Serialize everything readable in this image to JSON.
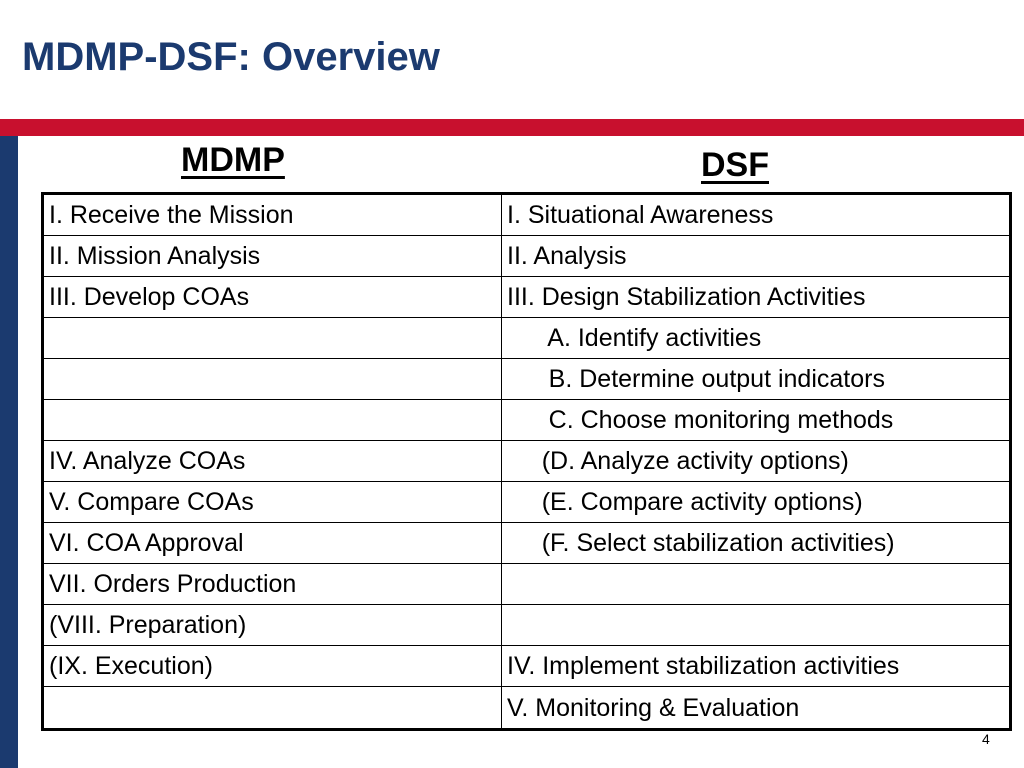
{
  "slide": {
    "title": "MDMP-DSF: Overview",
    "slide_number": "4",
    "colors": {
      "title": "#1b3a6f",
      "accent_red": "#c8102e",
      "accent_navy": "#1b3a6f"
    }
  },
  "columns": {
    "left_header": "MDMP",
    "right_header": "DSF"
  },
  "table": {
    "rows": [
      {
        "mdmp": "I. Receive the Mission",
        "dsf": "I. Situational Awareness"
      },
      {
        "mdmp": "II. Mission Analysis",
        "dsf": "II. Analysis"
      },
      {
        "mdmp": "III. Develop COAs",
        "dsf": "III. Design Stabilization Activities"
      },
      {
        "mdmp": "",
        "dsf": "      A. Identify activities"
      },
      {
        "mdmp": "",
        "dsf": "      B. Determine output indicators"
      },
      {
        "mdmp": "",
        "dsf": "      C. Choose monitoring methods"
      },
      {
        "mdmp": "IV. Analyze COAs",
        "dsf": "     (D. Analyze activity options)"
      },
      {
        "mdmp": "V. Compare COAs",
        "dsf": "     (E. Compare activity options)"
      },
      {
        "mdmp": "VI. COA Approval",
        "dsf": "     (F. Select stabilization activities)"
      },
      {
        "mdmp": "VII. Orders Production",
        "dsf": ""
      },
      {
        "mdmp": "(VIII. Preparation)",
        "dsf": ""
      },
      {
        "mdmp": "(IX. Execution)",
        "dsf": "IV. Implement stabilization activities"
      },
      {
        "mdmp": "",
        "dsf": "V. Monitoring & Evaluation"
      }
    ]
  }
}
